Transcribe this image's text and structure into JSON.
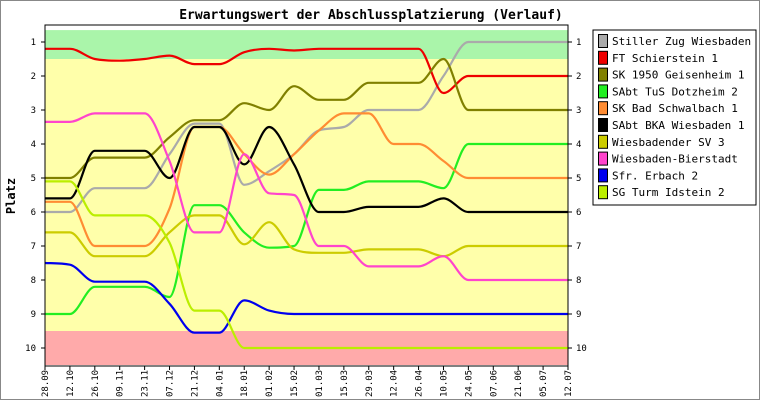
{
  "chart_data": {
    "type": "line",
    "title": "Erwartungswert der Abschlussplatzierung (Verlauf)",
    "ylabel": "Platz",
    "xlabel": "",
    "ylim": [
      1,
      10
    ],
    "y_inverted": true,
    "y_ticks": [
      "1",
      "2",
      "3",
      "4",
      "5",
      "6",
      "7",
      "8",
      "9",
      "10"
    ],
    "categories": [
      "28.09",
      "12.10",
      "26.10",
      "09.11",
      "23.11",
      "07.12",
      "21.12",
      "04.01",
      "18.01",
      "01.02",
      "15.02",
      "01.03",
      "15.03",
      "29.03",
      "12.04",
      "26.04",
      "10.05",
      "24.05",
      "07.06",
      "21.06",
      "05.07",
      "12.07"
    ],
    "grid": false,
    "legend_position": "right",
    "background_bands": [
      {
        "from": 0.65,
        "to": 1.5,
        "color": "#aaf5aa"
      },
      {
        "from": 1.5,
        "to": 9.5,
        "color": "#ffffaa"
      },
      {
        "from": 9.5,
        "to": 10.5,
        "color": "#ffaaaa"
      }
    ],
    "series": [
      {
        "name": "Stiller Zug Wiesbaden 1",
        "color": "#aaaaaa",
        "values": [
          6.0,
          6.0,
          5.3,
          5.3,
          5.3,
          4.3,
          3.4,
          3.4,
          5.2,
          4.8,
          4.3,
          3.6,
          3.5,
          3.0,
          3.0,
          3.0,
          2.0,
          1.0,
          1.0,
          1.0,
          1.0,
          1.0
        ]
      },
      {
        "name": "FT Schierstein 1",
        "color": "#ee0000",
        "values": [
          1.2,
          1.2,
          1.5,
          1.55,
          1.5,
          1.4,
          1.65,
          1.65,
          1.3,
          1.2,
          1.25,
          1.2,
          1.2,
          1.2,
          1.2,
          1.2,
          2.5,
          2.0,
          2.0,
          2.0,
          2.0,
          2.0
        ]
      },
      {
        "name": "SK 1950 Geisenheim 1",
        "color": "#808000",
        "values": [
          5.0,
          5.0,
          4.4,
          4.4,
          4.4,
          3.8,
          3.3,
          3.3,
          2.8,
          3.0,
          2.3,
          2.7,
          2.7,
          2.2,
          2.2,
          2.2,
          1.5,
          3.0,
          3.0,
          3.0,
          3.0,
          3.0
        ]
      },
      {
        "name": "SAbt TuS Dotzheim 2",
        "color": "#22ee22",
        "values": [
          9.0,
          9.0,
          8.2,
          8.2,
          8.2,
          8.5,
          5.8,
          5.8,
          6.6,
          7.05,
          7.0,
          5.35,
          5.35,
          5.1,
          5.1,
          5.1,
          5.3,
          4.0,
          4.0,
          4.0,
          4.0,
          4.0
        ]
      },
      {
        "name": "SK Bad Schwalbach 1",
        "color": "#ff8c33",
        "values": [
          5.7,
          5.7,
          7.0,
          7.0,
          7.0,
          5.9,
          3.5,
          3.5,
          4.3,
          4.9,
          4.3,
          3.6,
          3.1,
          3.1,
          4.0,
          4.0,
          4.5,
          5.0,
          5.0,
          5.0,
          5.0,
          5.0
        ]
      },
      {
        "name": "SAbt BKA Wiesbaden 1",
        "color": "#000000",
        "values": [
          5.6,
          5.6,
          4.2,
          4.2,
          4.2,
          5.0,
          3.5,
          3.5,
          4.6,
          3.5,
          4.6,
          6.0,
          6.0,
          5.85,
          5.85,
          5.85,
          5.6,
          6.0,
          6.0,
          6.0,
          6.0,
          6.0
        ]
      },
      {
        "name": "Wiesbadender SV 3",
        "color": "#cccc00",
        "values": [
          6.6,
          6.6,
          7.3,
          7.3,
          7.3,
          6.6,
          6.1,
          6.1,
          6.95,
          6.3,
          7.1,
          7.2,
          7.2,
          7.1,
          7.1,
          7.1,
          7.3,
          7.0,
          7.0,
          7.0,
          7.0,
          7.0
        ]
      },
      {
        "name": "Wiesbaden-Bierstadt",
        "color": "#ff44cc",
        "values": [
          3.35,
          3.35,
          3.1,
          3.1,
          3.1,
          4.5,
          6.6,
          6.6,
          4.3,
          5.45,
          5.5,
          7.0,
          7.0,
          7.6,
          7.6,
          7.6,
          7.3,
          8.0,
          8.0,
          8.0,
          8.0,
          8.0
        ]
      },
      {
        "name": "Sfr. Erbach 2",
        "color": "#0000ee",
        "values": [
          7.5,
          7.55,
          8.05,
          8.05,
          8.05,
          8.7,
          9.55,
          9.55,
          8.6,
          8.9,
          9.0,
          9.0,
          9.0,
          9.0,
          9.0,
          9.0,
          9.0,
          9.0,
          9.0,
          9.0,
          9.0,
          9.0
        ]
      },
      {
        "name": "SG Turm Idstein 2",
        "color": "#bbee00",
        "values": [
          5.1,
          5.1,
          6.1,
          6.1,
          6.1,
          6.9,
          8.9,
          8.9,
          10.0,
          10.0,
          10.0,
          10.0,
          10.0,
          10.0,
          10.0,
          10.0,
          10.0,
          10.0,
          10.0,
          10.0,
          10.0,
          10.0
        ]
      }
    ]
  }
}
